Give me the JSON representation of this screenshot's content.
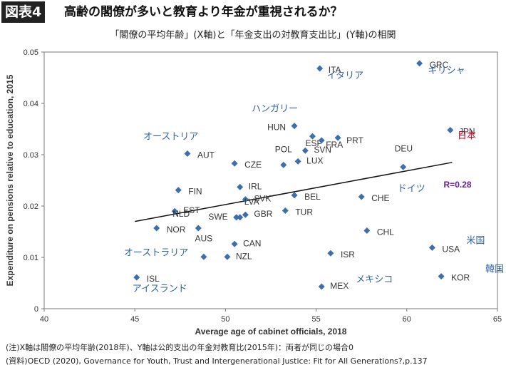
{
  "header": {
    "badge": "図表4",
    "title": "高齢の閣僚が多いと教育より年金が重視されるか？"
  },
  "subtitle": "「閣僚の平均年齢」(X軸)と「年金支出の対教育支出比」(Y軸)の相関",
  "notes": [
    "(注)X軸は閣僚の平均年齢(2018年)、Y軸は公的支出の年金対教育比(2015年)：両者が同じの場合0",
    "(資料)OECD (2020), Governance for Youth, Trust and Intergenerational Justice: Fit for All Generations?,p.137"
  ],
  "colors": {
    "marker": "#3d6fb0",
    "japanese_label": "#2f64a8",
    "japan_label": "#d0021b",
    "r_label": "#6a1b9a",
    "trend": "#111111"
  },
  "chart_data": {
    "type": "scatter",
    "xlabel": "Average age of cabinet officials, 2018",
    "ylabel": "Expenditure on pensions relative to education, 2015",
    "xlim": [
      40,
      65
    ],
    "ylim": [
      0,
      0.05
    ],
    "xticks": [
      40,
      45,
      50,
      55,
      60,
      65
    ],
    "yticks": [
      0,
      0.01,
      0.02,
      0.03,
      0.04,
      0.05
    ],
    "ytick_labels": [
      "0",
      "0.01",
      "0.02",
      "0.03",
      "0.04",
      "0.05"
    ],
    "grid": false,
    "annotation": "R=0.28",
    "trendline": {
      "x": [
        45,
        62.5
      ],
      "y": [
        0.017,
        0.0285
      ]
    },
    "points": [
      {
        "label": "GRC",
        "x": 60.7,
        "y": 0.0478,
        "jp": "ギリシャ"
      },
      {
        "label": "ITA",
        "x": 55.2,
        "y": 0.0468,
        "jp": "イタリア"
      },
      {
        "label": "JPN",
        "x": 62.4,
        "y": 0.0348,
        "jp": "日本"
      },
      {
        "label": "HUN",
        "x": 53.8,
        "y": 0.0356,
        "jp": "ハンガリー"
      },
      {
        "label": "ESP",
        "x": 54.8,
        "y": 0.0336
      },
      {
        "label": "FRA",
        "x": 55.3,
        "y": 0.0328
      },
      {
        "label": "PRT",
        "x": 56.2,
        "y": 0.0333
      },
      {
        "label": "SVN",
        "x": 54.4,
        "y": 0.0308
      },
      {
        "label": "AUT",
        "x": 47.9,
        "y": 0.0302,
        "jp": "オーストリア"
      },
      {
        "label": "LUX",
        "x": 54.0,
        "y": 0.0287
      },
      {
        "label": "CZE",
        "x": 50.5,
        "y": 0.0283
      },
      {
        "label": "POL",
        "x": 53.2,
        "y": 0.028
      },
      {
        "label": "DEU",
        "x": 59.8,
        "y": 0.0276,
        "jp": "ドイツ"
      },
      {
        "label": "IRL",
        "x": 50.8,
        "y": 0.0237
      },
      {
        "label": "FIN",
        "x": 47.4,
        "y": 0.0231
      },
      {
        "label": "BEL",
        "x": 53.8,
        "y": 0.0221
      },
      {
        "label": "CHE",
        "x": 57.5,
        "y": 0.0218
      },
      {
        "label": "SVK",
        "x": 51.1,
        "y": 0.0213
      },
      {
        "label": "EST",
        "x": 47.2,
        "y": 0.019
      },
      {
        "label": "TUR",
        "x": 53.3,
        "y": 0.0191
      },
      {
        "label": "GBR",
        "x": 51.1,
        "y": 0.0183
      },
      {
        "label": "SWE",
        "x": 50.6,
        "y": 0.0178
      },
      {
        "label": "LVA",
        "x": 50.8,
        "y": 0.0178
      },
      {
        "label": "NOR",
        "x": 46.2,
        "y": 0.0157
      },
      {
        "label": "NLD",
        "x": 48.5,
        "y": 0.0157
      },
      {
        "label": "CHL",
        "x": 57.8,
        "y": 0.0152
      },
      {
        "label": "CAN",
        "x": 50.5,
        "y": 0.0126
      },
      {
        "label": "USA",
        "x": 61.4,
        "y": 0.0119,
        "jp": "米国"
      },
      {
        "label": "ISR",
        "x": 55.8,
        "y": 0.0108
      },
      {
        "label": "AUS",
        "x": 48.8,
        "y": 0.0101,
        "jp": "オーストラリア"
      },
      {
        "label": "NZL",
        "x": 50.1,
        "y": 0.0101
      },
      {
        "label": "KOR",
        "x": 61.9,
        "y": 0.0063,
        "jp": "韓国"
      },
      {
        "label": "ISL",
        "x": 45.1,
        "y": 0.0061,
        "jp": "アイスランド"
      },
      {
        "label": "MEX",
        "x": 55.3,
        "y": 0.0043,
        "jp": "メキシコ"
      }
    ]
  }
}
